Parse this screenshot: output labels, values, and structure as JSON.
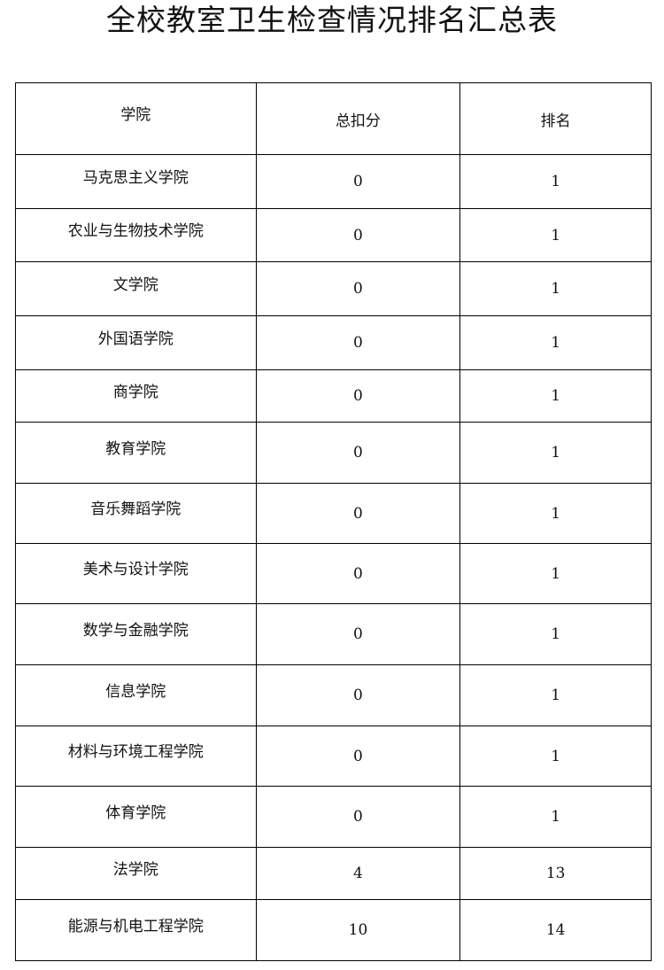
{
  "title": "全校教室卫生检查情况排名汇总表",
  "headers": [
    "学院",
    "总扣分",
    "排名"
  ],
  "rows": [
    {
      "college": "马克思主义学院",
      "deduction": "0",
      "rank": "1"
    },
    {
      "college": "农业与生物技术学院",
      "deduction": "0",
      "rank": "1"
    },
    {
      "college": "文学院",
      "deduction": "0",
      "rank": "1"
    },
    {
      "college": "外国语学院",
      "deduction": "0",
      "rank": "1"
    },
    {
      "college": "商学院",
      "deduction": "0",
      "rank": "1"
    },
    {
      "college": "教育学院",
      "deduction": "0",
      "rank": "1"
    },
    {
      "college": "音乐舞蹈学院",
      "deduction": "0",
      "rank": "1"
    },
    {
      "college": "美术与设计学院",
      "deduction": "0",
      "rank": "1"
    },
    {
      "college": "数学与金融学院",
      "deduction": "0",
      "rank": "1"
    },
    {
      "college": "信息学院",
      "deduction": "0",
      "rank": "1"
    },
    {
      "college": "材料与环境工程学院",
      "deduction": "0",
      "rank": "1"
    },
    {
      "college": "体育学院",
      "deduction": "0",
      "rank": "1"
    },
    {
      "college": "法学院",
      "deduction": "4",
      "rank": "13"
    },
    {
      "college": "能源与机电工程学院",
      "deduction": "10",
      "rank": "14"
    }
  ]
}
